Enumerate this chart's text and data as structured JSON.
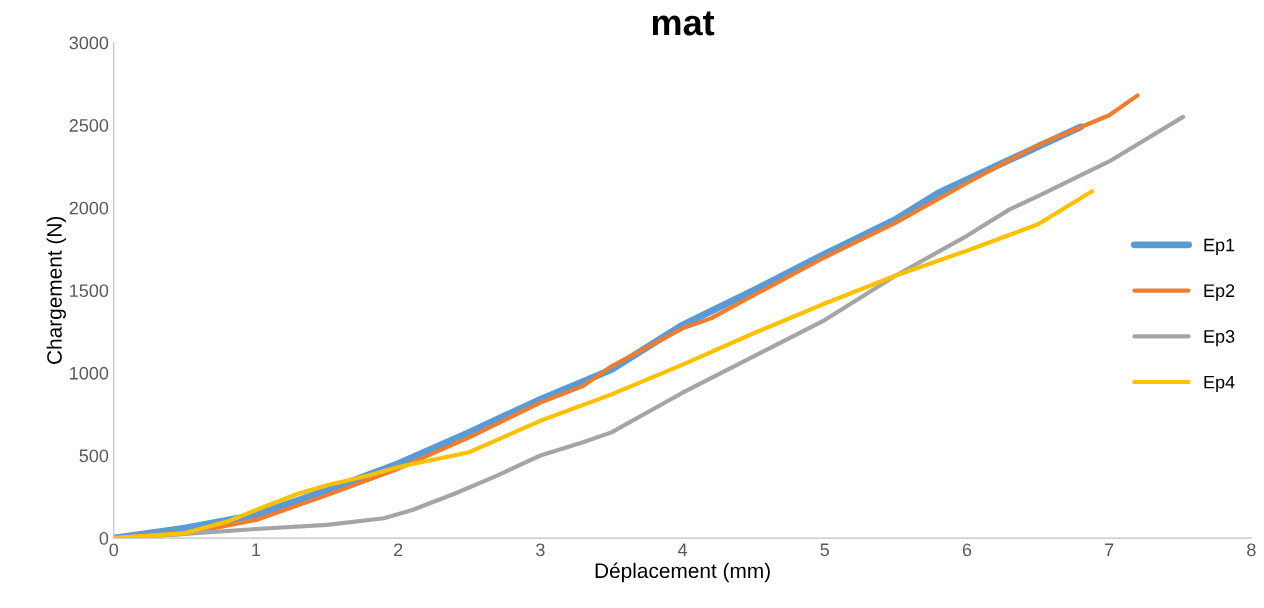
{
  "chart_data": {
    "type": "line",
    "title": "mat",
    "xlabel": "Déplacement (mm)",
    "ylabel": "Chargement (N)",
    "xlim": [
      0,
      8
    ],
    "xticks": [
      0,
      1,
      2,
      3,
      4,
      5,
      6,
      7,
      8
    ],
    "ylim": [
      0,
      3000
    ],
    "yticks": [
      0,
      500,
      1000,
      1500,
      2000,
      2500,
      3000
    ],
    "grid": false,
    "legend": "right",
    "marker": "none",
    "line_style": "solid",
    "series": [
      {
        "name": "Ep1",
        "color": "#5b9bd5",
        "x": [
          0,
          0.5,
          1,
          1.5,
          2,
          2.5,
          3,
          3.5,
          4,
          4.5,
          5,
          5.5,
          5.8,
          6,
          6.5,
          6.8
        ],
        "values": [
          0,
          60,
          140,
          290,
          450,
          640,
          840,
          1020,
          1290,
          1500,
          1720,
          1930,
          2090,
          2170,
          2370,
          2490
        ]
      },
      {
        "name": "Ep2",
        "color": "#ed7d31",
        "x": [
          0,
          0.5,
          1,
          1.5,
          2,
          2.5,
          3,
          3.3,
          3.5,
          4,
          4.2,
          4.5,
          5,
          5.5,
          6,
          6.5,
          7,
          7.2
        ],
        "values": [
          0,
          25,
          110,
          260,
          420,
          610,
          820,
          920,
          1040,
          1270,
          1330,
          1470,
          1700,
          1910,
          2150,
          2380,
          2560,
          2680
        ]
      },
      {
        "name": "Ep3",
        "color": "#a5a5a5",
        "x": [
          0,
          0.5,
          1,
          1.5,
          1.9,
          2.1,
          2.4,
          2.7,
          3,
          3.3,
          3.5,
          4,
          4.5,
          5,
          5.5,
          6,
          6.3,
          6.5,
          7,
          7.52
        ],
        "values": [
          0,
          25,
          55,
          80,
          120,
          170,
          270,
          380,
          500,
          580,
          640,
          880,
          1100,
          1320,
          1590,
          1830,
          1990,
          2070,
          2280,
          2550
        ]
      },
      {
        "name": "Ep4",
        "color": "#ffc000",
        "x": [
          0,
          0.5,
          0.8,
          1,
          1.3,
          1.5,
          1.8,
          2,
          2.5,
          3,
          3.5,
          4,
          4.5,
          5,
          5.5,
          6,
          6.5,
          6.88
        ],
        "values": [
          0,
          30,
          100,
          170,
          270,
          320,
          380,
          430,
          520,
          710,
          870,
          1050,
          1240,
          1420,
          1590,
          1740,
          1900,
          2100
        ]
      }
    ]
  }
}
